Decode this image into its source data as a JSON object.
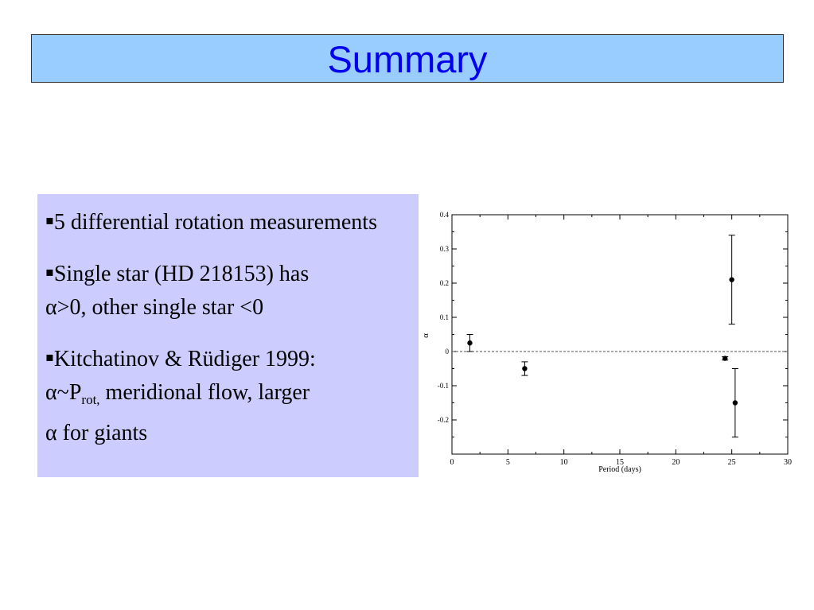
{
  "title": "Summary",
  "bullets": {
    "mark": "▪",
    "b1": "5 differential rotation measurements",
    "b2_part1": "Single star (HD 218153) has",
    "b2_alpha": "α",
    "b2_part2": ">0, other single star <0",
    "b3_part1": "Kitchatinov & Rüdiger 1999:",
    "b3_alpha": "α",
    "b3_tilde": "~P",
    "b3_sub": "rot,",
    "b3_part2": " meridional flow, larger",
    "b3_alpha2": "α",
    "b3_part3": " for giants"
  },
  "colors": {
    "title_bg": "#99ccff",
    "title_text": "#0000ee",
    "bullet_bg": "#ccccff"
  },
  "chart_data": {
    "type": "scatter",
    "xlabel": "Period (days)",
    "ylabel": "α",
    "xlim": [
      0,
      30
    ],
    "ylim": [
      -0.3,
      0.4
    ],
    "x_ticks": [
      0,
      5,
      10,
      15,
      20,
      25,
      30
    ],
    "y_ticks": [
      0.4,
      0.3,
      0.2,
      0.1,
      0,
      -0.1,
      -0.2
    ],
    "reference_line": 0,
    "points": [
      {
        "x": 1.6,
        "y": 0.025,
        "err_low": 0.0,
        "err_high": 0.05
      },
      {
        "x": 6.5,
        "y": -0.05,
        "err_low": -0.07,
        "err_high": -0.03
      },
      {
        "x": 24.4,
        "y": -0.02,
        "err_low": -0.025,
        "err_high": -0.015
      },
      {
        "x": 25.0,
        "y": 0.21,
        "err_low": 0.08,
        "err_high": 0.34
      },
      {
        "x": 25.3,
        "y": -0.15,
        "err_low": -0.25,
        "err_high": -0.05
      }
    ],
    "grid": false
  }
}
